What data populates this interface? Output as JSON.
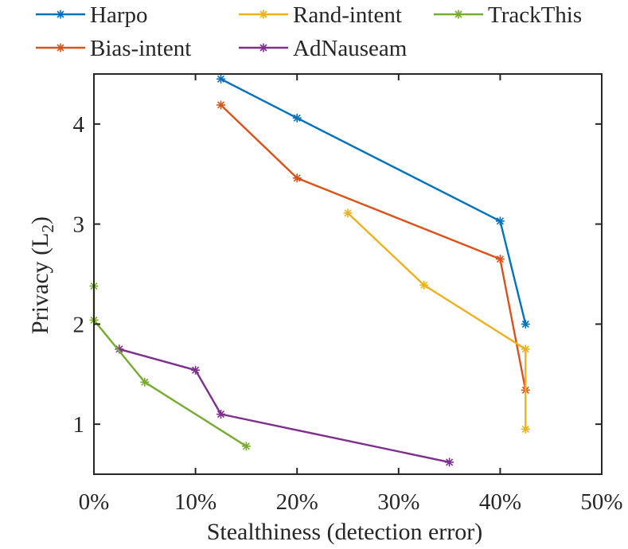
{
  "chart_data": {
    "type": "line",
    "xlabel": "Stealthiness (detection error)",
    "ylabel": "Privacy (L",
    "ylabel_subscript": "2",
    "ylabel_close": ")",
    "xlim": [
      0,
      50
    ],
    "ylim": [
      0.5,
      4.5
    ],
    "xticks": [
      0,
      10,
      20,
      30,
      40,
      50
    ],
    "xtick_labels": [
      "0%",
      "10%",
      "20%",
      "30%",
      "40%",
      "50%"
    ],
    "yticks": [
      1,
      2,
      3,
      4
    ],
    "ytick_labels": [
      "1",
      "2",
      "3",
      "4"
    ],
    "legend_position": "top",
    "series": [
      {
        "name": "Harpo",
        "color": "#0072BD",
        "x": [
          12.5,
          20,
          40,
          42.5
        ],
        "y": [
          4.45,
          4.06,
          3.03,
          2.0
        ]
      },
      {
        "name": "Bias-intent",
        "color": "#D95319",
        "x": [
          12.5,
          20,
          40,
          42.5
        ],
        "y": [
          4.19,
          3.46,
          2.65,
          1.34
        ]
      },
      {
        "name": "Rand-intent",
        "color": "#EDB120",
        "x": [
          25,
          32.5,
          42.5,
          42.5
        ],
        "y": [
          3.11,
          2.39,
          1.75,
          0.95
        ]
      },
      {
        "name": "AdNauseam",
        "color": "#7E2F8E",
        "x": [
          2.5,
          10,
          12.5,
          35
        ],
        "y": [
          1.75,
          1.54,
          1.1,
          0.62
        ]
      },
      {
        "name": "TrackThis",
        "color": "#77AC30",
        "x": [
          0,
          0,
          5,
          15
        ],
        "y": [
          2.38,
          2.04,
          1.42,
          0.78
        ]
      }
    ]
  }
}
